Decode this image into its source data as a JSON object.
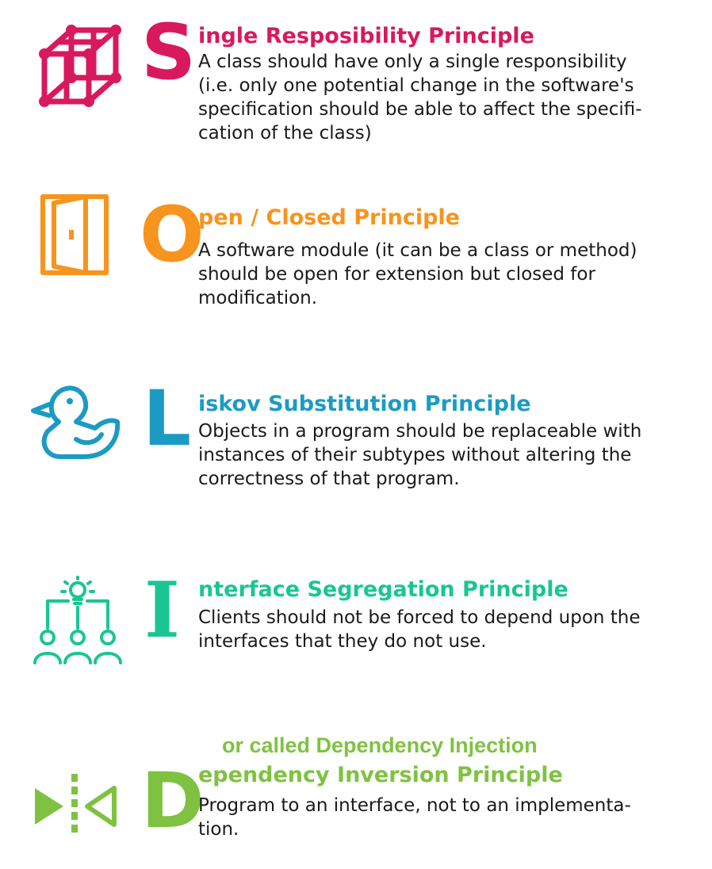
{
  "colors": {
    "s": "#d8195e",
    "o": "#f7941d",
    "l": "#1b9bc4",
    "i": "#19c693",
    "d": "#7fc241"
  },
  "principles": [
    {
      "letter": "S",
      "title": "ingle Resposibility Principle",
      "icon": "cube-network-icon",
      "lines": [
        "A class should have only a single responsibility",
        "(i.e. only one potential change in the software's",
        "specification should be able to affect the specifi-",
        "cation of the class)"
      ]
    },
    {
      "letter": "O",
      "title": "pen / Closed Principle",
      "icon": "open-door-icon",
      "lines": [
        "A software module (it can be a class or method)",
        "should be open for extension but closed for",
        "modification."
      ]
    },
    {
      "letter": "L",
      "title": "iskov Substitution Principle",
      "icon": "duck-icon",
      "lines": [
        "Objects in a program should be replaceable with",
        "instances of their subtypes without altering the",
        "correctness of that program."
      ]
    },
    {
      "letter": "I",
      "title": "nterface Segregation Principle",
      "icon": "people-idea-icon",
      "lines": [
        "Clients should not be forced to depend upon the",
        "interfaces that they do not use."
      ]
    },
    {
      "letter": "D",
      "title": "ependency Inversion Principle",
      "icon": "inversion-arrows-icon",
      "lines": [
        "Program to an interface, not to an implementa-",
        "tion."
      ]
    }
  ],
  "note": "or called Dependency Injection"
}
